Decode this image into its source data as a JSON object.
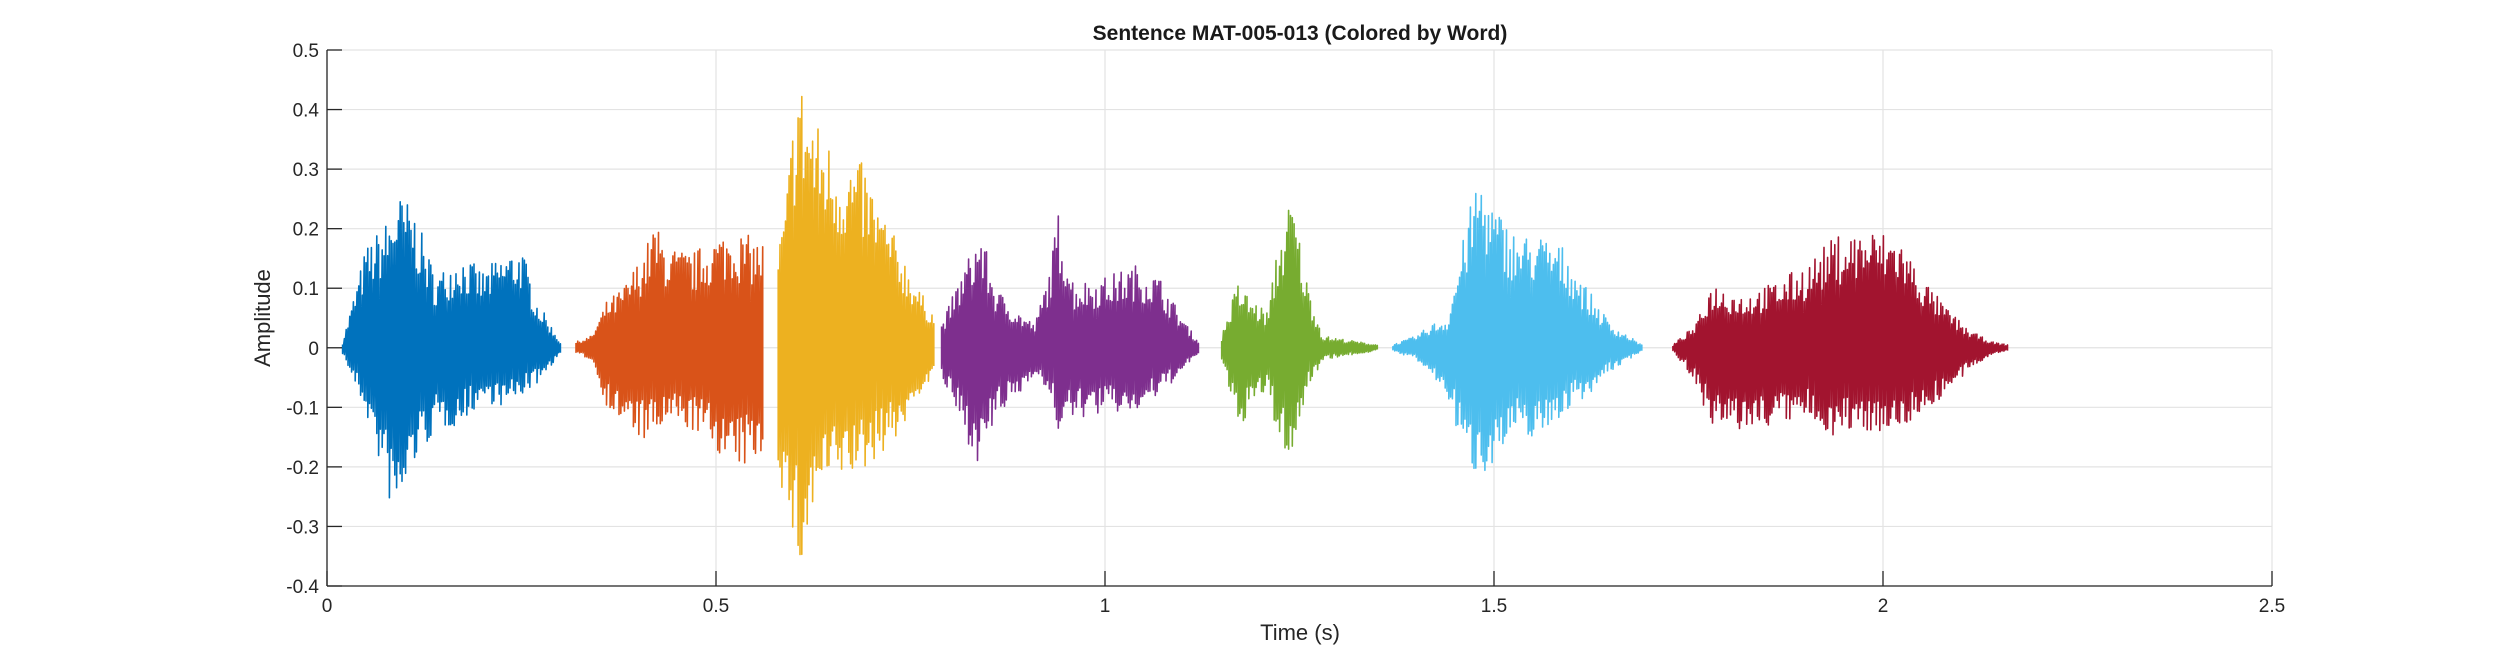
{
  "chart_data": {
    "type": "line",
    "title": "Sentence MAT-005-013 (Colored by Word)",
    "xlabel": "Time (s)",
    "ylabel": "Amplitude",
    "xlim": [
      0,
      2.5
    ],
    "ylim": [
      -0.4,
      0.5
    ],
    "x_ticks": [
      0,
      0.5,
      1,
      1.5,
      2,
      2.5
    ],
    "x_tick_labels": [
      "0",
      "0.5",
      "1",
      "1.5",
      "2",
      "2.5"
    ],
    "y_ticks": [
      -0.4,
      -0.3,
      -0.2,
      -0.1,
      0,
      0.1,
      0.2,
      0.3,
      0.4,
      0.5
    ],
    "y_tick_labels": [
      "-0.4",
      "-0.3",
      "-0.2",
      "-0.1",
      "0",
      "0.1",
      "0.2",
      "0.3",
      "0.4",
      "0.5"
    ],
    "grid": true,
    "series": [
      {
        "color": "#0072BD",
        "x_range": [
          0.02,
          0.3
        ],
        "envelope": [
          [
            0.02,
            0.01,
            -0.01
          ],
          [
            0.05,
            0.17,
            -0.11
          ],
          [
            0.08,
            0.22,
            -0.26
          ],
          [
            0.09,
            0.26,
            -0.3
          ],
          [
            0.11,
            0.24,
            -0.2
          ],
          [
            0.14,
            0.12,
            -0.14
          ],
          [
            0.17,
            0.16,
            -0.13
          ],
          [
            0.2,
            0.13,
            -0.09
          ],
          [
            0.23,
            0.16,
            -0.1
          ],
          [
            0.25,
            0.17,
            -0.08
          ],
          [
            0.27,
            0.08,
            -0.06
          ],
          [
            0.3,
            0.01,
            -0.01
          ]
        ]
      },
      {
        "color": "#D95319",
        "x_range": [
          0.32,
          0.56
        ],
        "envelope": [
          [
            0.32,
            0.01,
            -0.01
          ],
          [
            0.34,
            0.02,
            -0.02
          ],
          [
            0.36,
            0.08,
            -0.1
          ],
          [
            0.38,
            0.1,
            -0.13
          ],
          [
            0.41,
            0.17,
            -0.16
          ],
          [
            0.42,
            0.21,
            -0.15
          ],
          [
            0.44,
            0.17,
            -0.13
          ],
          [
            0.47,
            0.16,
            -0.14
          ],
          [
            0.5,
            0.19,
            -0.17
          ],
          [
            0.52,
            0.2,
            -0.21
          ],
          [
            0.54,
            0.19,
            -0.2
          ],
          [
            0.56,
            0.18,
            -0.18
          ]
        ]
      },
      {
        "color": "#EDB120",
        "x_range": [
          0.58,
          0.78
        ],
        "envelope": [
          [
            0.58,
            0.17,
            -0.2
          ],
          [
            0.59,
            0.25,
            -0.28
          ],
          [
            0.605,
            0.48,
            -0.36
          ],
          [
            0.61,
            0.45,
            -0.38
          ],
          [
            0.63,
            0.38,
            -0.25
          ],
          [
            0.66,
            0.32,
            -0.22
          ],
          [
            0.69,
            0.31,
            -0.21
          ],
          [
            0.71,
            0.24,
            -0.18
          ],
          [
            0.74,
            0.16,
            -0.14
          ],
          [
            0.76,
            0.1,
            -0.08
          ],
          [
            0.78,
            0.06,
            -0.05
          ]
        ]
      },
      {
        "color": "#7E2F8E",
        "x_range": [
          0.79,
          1.12
        ],
        "envelope": [
          [
            0.79,
            0.04,
            -0.05
          ],
          [
            0.82,
            0.14,
            -0.15
          ],
          [
            0.84,
            0.2,
            -0.2
          ],
          [
            0.86,
            0.1,
            -0.12
          ],
          [
            0.89,
            0.06,
            -0.08
          ],
          [
            0.91,
            0.04,
            -0.04
          ],
          [
            0.93,
            0.14,
            -0.09
          ],
          [
            0.94,
            0.23,
            -0.14
          ],
          [
            0.96,
            0.11,
            -0.12
          ],
          [
            1.0,
            0.12,
            -0.11
          ],
          [
            1.04,
            0.14,
            -0.11
          ],
          [
            1.07,
            0.12,
            -0.08
          ],
          [
            1.1,
            0.05,
            -0.04
          ],
          [
            1.12,
            0.01,
            -0.01
          ]
        ]
      },
      {
        "color": "#77AC30",
        "x_range": [
          1.15,
          1.35
        ],
        "envelope": [
          [
            1.15,
            0.02,
            -0.02
          ],
          [
            1.17,
            0.11,
            -0.14
          ],
          [
            1.19,
            0.08,
            -0.1
          ],
          [
            1.21,
            0.06,
            -0.07
          ],
          [
            1.22,
            0.16,
            -0.15
          ],
          [
            1.24,
            0.26,
            -0.19
          ],
          [
            1.26,
            0.11,
            -0.07
          ],
          [
            1.28,
            0.02,
            -0.02
          ],
          [
            1.35,
            0.005,
            -0.005
          ]
        ]
      },
      {
        "color": "#4DBEEE",
        "x_range": [
          1.37,
          1.69
        ],
        "envelope": [
          [
            1.37,
            0.005,
            -0.005
          ],
          [
            1.4,
            0.02,
            -0.02
          ],
          [
            1.42,
            0.04,
            -0.05
          ],
          [
            1.44,
            0.05,
            -0.08
          ],
          [
            1.46,
            0.18,
            -0.18
          ],
          [
            1.48,
            0.3,
            -0.22
          ],
          [
            1.5,
            0.24,
            -0.19
          ],
          [
            1.53,
            0.19,
            -0.15
          ],
          [
            1.56,
            0.19,
            -0.15
          ],
          [
            1.59,
            0.17,
            -0.11
          ],
          [
            1.62,
            0.1,
            -0.08
          ],
          [
            1.65,
            0.04,
            -0.04
          ],
          [
            1.69,
            0.005,
            -0.005
          ]
        ]
      },
      {
        "color": "#A2142F",
        "x_range": [
          1.73,
          2.16
        ],
        "envelope": [
          [
            1.73,
            0.005,
            -0.005
          ],
          [
            1.76,
            0.04,
            -0.06
          ],
          [
            1.78,
            0.11,
            -0.14
          ],
          [
            1.82,
            0.09,
            -0.14
          ],
          [
            1.86,
            0.11,
            -0.13
          ],
          [
            1.9,
            0.14,
            -0.12
          ],
          [
            1.94,
            0.19,
            -0.15
          ],
          [
            1.98,
            0.2,
            -0.14
          ],
          [
            2.02,
            0.19,
            -0.14
          ],
          [
            2.05,
            0.12,
            -0.11
          ],
          [
            2.08,
            0.07,
            -0.08
          ],
          [
            2.11,
            0.03,
            -0.04
          ],
          [
            2.14,
            0.01,
            -0.01
          ],
          [
            2.16,
            0.005,
            -0.005
          ]
        ]
      }
    ]
  }
}
